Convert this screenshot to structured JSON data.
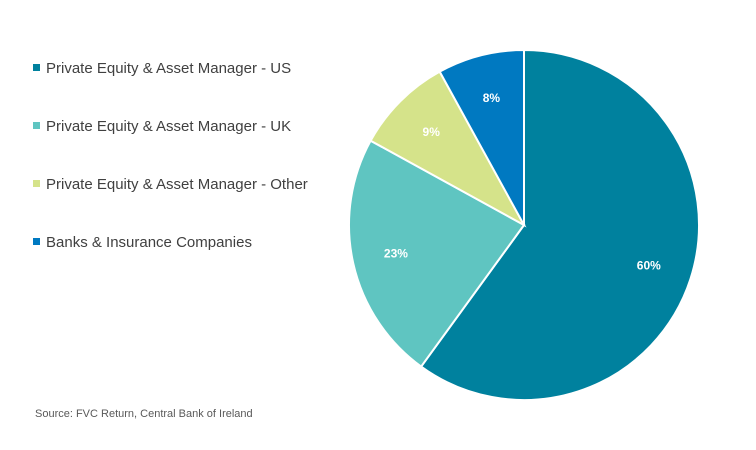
{
  "chart_data": {
    "type": "pie",
    "categories": [
      "Private Equity & Asset Manager - US",
      "Private Equity & Asset Manager - UK",
      "Private Equity & Asset Manager - Other",
      "Banks & Insurance Companies"
    ],
    "values": [
      60,
      23,
      9,
      8
    ],
    "value_labels": [
      "60%",
      "23%",
      "9%",
      "8%"
    ],
    "colors": [
      "#00819E",
      "#5FC5C1",
      "#D5E38A",
      "#0079C1"
    ],
    "legend_position": "left",
    "label_color": "#FFFFFF"
  },
  "source": "Source: FVC Return, Central Bank of Ireland"
}
